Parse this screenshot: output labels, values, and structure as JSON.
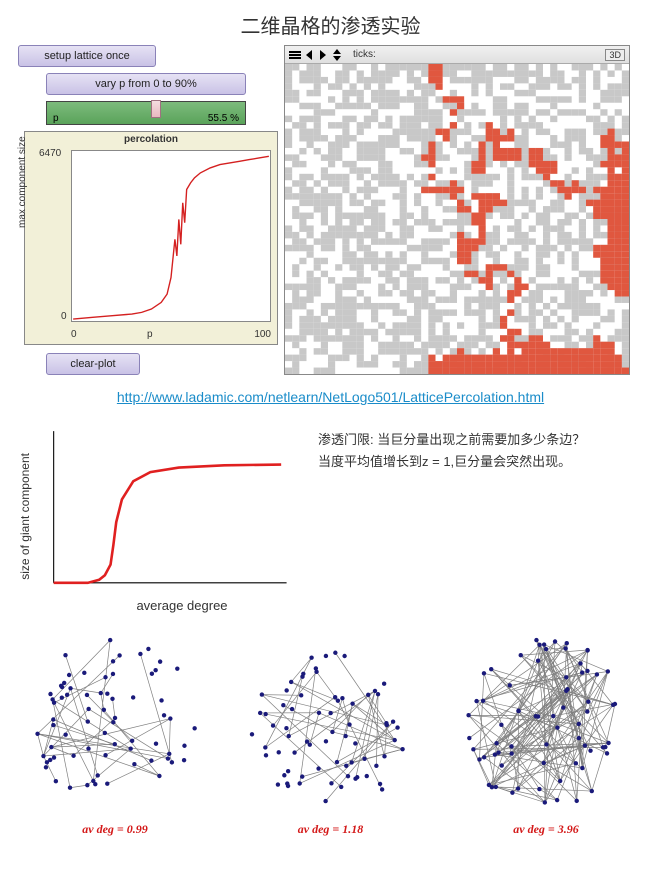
{
  "page_title": "二维晶格的渗透实验",
  "netlogo": {
    "setup_button": "setup lattice once",
    "vary_button": "vary p from 0 to 90%",
    "slider": {
      "label": "p",
      "value": "55.5 %",
      "percent": 55.5
    },
    "clear_button": "clear-plot",
    "world": {
      "ticks_label": "ticks:",
      "threeD_label": "3D",
      "grid_n": 48
    },
    "plot": {
      "title": "percolation",
      "ylabel": "max component size",
      "xlabel": "p",
      "ymax": "6470",
      "ymin": "0",
      "xmin": "0",
      "xmax": "100",
      "line_color": "#d42020",
      "points": [
        [
          0,
          0
        ],
        [
          10,
          1
        ],
        [
          20,
          2
        ],
        [
          30,
          3
        ],
        [
          35,
          4
        ],
        [
          40,
          6
        ],
        [
          45,
          10
        ],
        [
          48,
          15
        ],
        [
          50,
          25
        ],
        [
          52,
          48
        ],
        [
          53,
          38
        ],
        [
          54,
          60
        ],
        [
          55,
          45
        ],
        [
          56,
          70
        ],
        [
          57,
          58
        ],
        [
          58,
          78
        ],
        [
          60,
          82
        ],
        [
          62,
          85
        ],
        [
          65,
          88
        ],
        [
          70,
          91
        ],
        [
          75,
          93
        ],
        [
          80,
          94
        ],
        [
          85,
          95
        ],
        [
          90,
          96
        ],
        [
          95,
          97
        ],
        [
          100,
          98
        ]
      ]
    }
  },
  "ref_link": "http://www.ladamic.com/netlearn/NetLogo501/LatticePercolation.html",
  "threshold_curve": {
    "ylabel": "size of giant component",
    "xlabel": "average  degree",
    "line_color": "#e02020",
    "description_l1": "渗透门限: 当巨分量出现之前需要加多少条边？",
    "description_l2": "当度平均值增长到z = 1,巨分量会突然出现。",
    "points": [
      [
        0,
        0
      ],
      [
        0.6,
        0
      ],
      [
        0.8,
        0.02
      ],
      [
        0.9,
        0.05
      ],
      [
        1.0,
        0.12
      ],
      [
        1.05,
        0.25
      ],
      [
        1.1,
        0.4
      ],
      [
        1.2,
        0.55
      ],
      [
        1.4,
        0.67
      ],
      [
        1.7,
        0.73
      ],
      [
        2.2,
        0.76
      ],
      [
        3.0,
        0.775
      ],
      [
        4.0,
        0.78
      ]
    ]
  },
  "networks": {
    "node_color": "#1a1a7a",
    "edge_color": "#808080",
    "caption_color": "#d41a1a",
    "graphs": [
      {
        "caption": "av deg = 0.99",
        "n_nodes": 70,
        "density": 0.015,
        "seed": 11
      },
      {
        "caption": "av deg = 1.18",
        "n_nodes": 70,
        "density": 0.018,
        "seed": 22
      },
      {
        "caption": "av deg = 3.96",
        "n_nodes": 70,
        "density": 0.06,
        "seed": 33
      }
    ]
  }
}
